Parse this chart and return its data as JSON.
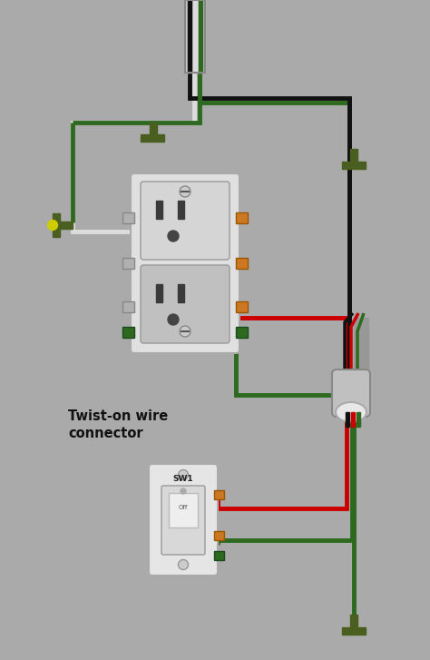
{
  "bg_color": "#aaaaaa",
  "wire_black": "#111111",
  "wire_white": "#dddddd",
  "wire_red": "#cc0000",
  "wire_green": "#2d6a1f",
  "wire_gray": "#909090",
  "olive": "#4a5e20",
  "yellow": "#cccc00",
  "outlet_light": "#e8e8e8",
  "outlet_mid": "#d0d0d0",
  "outlet_dark": "#b8b8b8",
  "screw_brass": "#cc7722",
  "screw_silver": "#aaaaaa",
  "connector_body": "#c0c0c0",
  "connector_cap": "#e8e8e8",
  "label_text": "Twist-on wire\nconnector",
  "label_fontsize": 10.5
}
